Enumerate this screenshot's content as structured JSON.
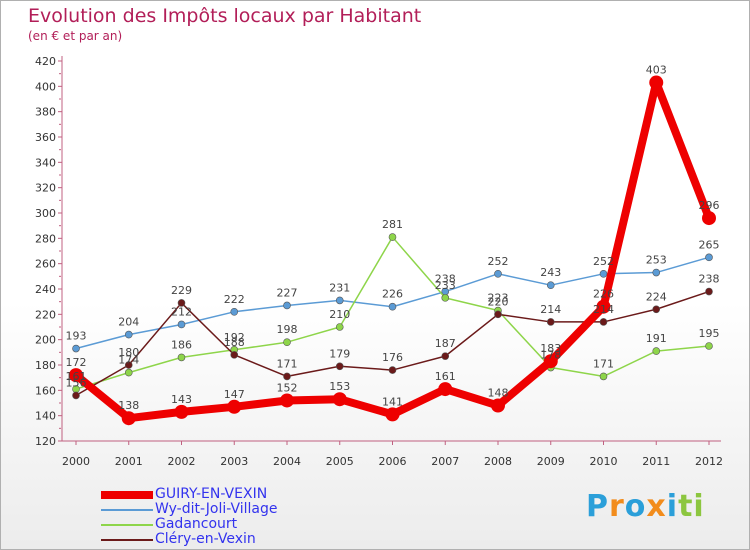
{
  "chart_data": {
    "type": "line",
    "title": "Evolution des Impôts locaux par Habitant",
    "subtitle": "(en € et par an)",
    "xlabel": "",
    "ylabel": "",
    "ylim": [
      120,
      420
    ],
    "yticks": [
      120,
      140,
      160,
      180,
      200,
      220,
      240,
      260,
      280,
      300,
      320,
      340,
      360,
      380,
      400,
      420
    ],
    "grid": false,
    "legend_position": "bottom-left",
    "categories": [
      "2000",
      "2001",
      "2002",
      "2003",
      "2004",
      "2005",
      "2006",
      "2007",
      "2008",
      "2009",
      "2010",
      "2011",
      "2012"
    ],
    "series": [
      {
        "name": "Wy-dit-Joli-Village",
        "color": "#5b9bd5",
        "values": [
          193,
          204,
          212,
          222,
          227,
          231,
          226,
          238,
          252,
          243,
          252,
          253,
          265
        ]
      },
      {
        "name": "Gadancourt",
        "color": "#8ed54a",
        "values": [
          161,
          174,
          186,
          192,
          198,
          210,
          281,
          233,
          223,
          178,
          171,
          191,
          195
        ]
      },
      {
        "name": "Cléry-en-Vexin",
        "color": "#6b1a1a",
        "values": [
          156,
          180,
          229,
          188,
          171,
          179,
          176,
          187,
          220,
          214,
          214,
          224,
          238
        ]
      },
      {
        "name": "GUIRY-EN-VEXIN",
        "color": "#ee0000",
        "values": [
          172,
          138,
          143,
          147,
          152,
          153,
          141,
          161,
          148,
          183,
          226,
          403,
          296
        ]
      }
    ],
    "legend_order": [
      "GUIRY-EN-VEXIN",
      "Wy-dit-Joli-Village",
      "Gadancourt",
      "Cléry-en-Vexin"
    ]
  },
  "logo": {
    "text": "Proxiti",
    "letters": [
      "P",
      "r",
      "o",
      "x",
      "i",
      "t",
      "i"
    ],
    "colors": [
      "#2b9fd9",
      "#f28c1c",
      "#2b9fd9",
      "#f28c1c",
      "#2b9fd9",
      "#8cc63f",
      "#8cc63f"
    ]
  }
}
